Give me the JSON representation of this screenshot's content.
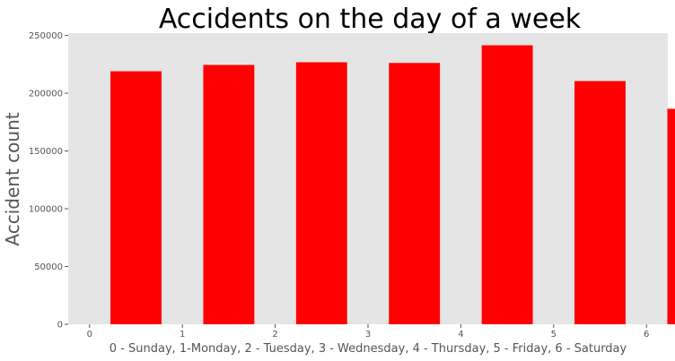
{
  "chart_data": {
    "type": "bar",
    "title": "Accidents on the day of a week",
    "xlabel": "0 - Sunday, 1-Monday, 2 - Tuesday, 3 - Wednesday, 4 - Thursday, 5 - Friday, 6 - Saturday",
    "ylabel": "Accident count",
    "x": [
      0,
      1,
      2,
      3,
      4,
      5,
      6
    ],
    "values": [
      219000,
      224500,
      226800,
      226200,
      241500,
      210500,
      186500
    ],
    "bar_width": 0.55,
    "xlim": [
      -0.23,
      6.23
    ],
    "ylim": [
      0,
      252000
    ],
    "xticks": [
      0,
      1,
      2,
      3,
      4,
      5,
      6
    ],
    "yticks": [
      0,
      50000,
      100000,
      150000,
      200000,
      250000
    ],
    "xtick_labels": [
      "0",
      "1",
      "2",
      "3",
      "4",
      "5",
      "6"
    ],
    "ytick_labels": [
      "0",
      "50000",
      "100000",
      "150000",
      "200000",
      "250000"
    ],
    "grid": false,
    "bar_color": "#ff0000",
    "background_color": "#e5e5e5"
  }
}
